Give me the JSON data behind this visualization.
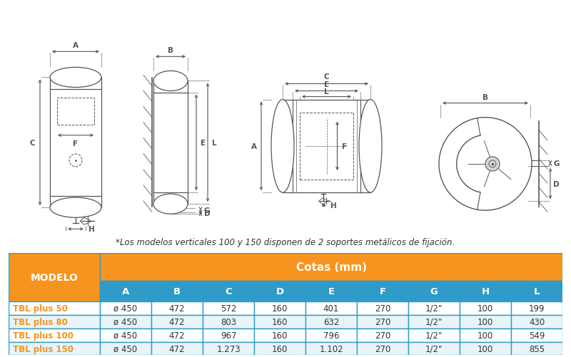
{
  "note_text": "*Los modelos verticales 100 y 150 disponen de 2 soportes metálicos de fijación.",
  "table_header_modelo": "MODELO",
  "table_header_cotas": "Cotas (mm)",
  "table_col_headers": [
    "A",
    "B",
    "C",
    "D",
    "E",
    "F",
    "G",
    "H",
    "L"
  ],
  "table_rows": [
    [
      "TBL plus 50",
      "ø 450",
      "472",
      "572",
      "160",
      "401",
      "270",
      "1/2\"",
      "100",
      "199"
    ],
    [
      "TBL plus 80",
      "ø 450",
      "472",
      "803",
      "160",
      "632",
      "270",
      "1/2\"",
      "100",
      "430"
    ],
    [
      "TBL plus 100",
      "ø 450",
      "472",
      "967",
      "160",
      "796",
      "270",
      "1/2\"",
      "100",
      "549"
    ],
    [
      "TBL plus 150",
      "ø 450",
      "472",
      "1.273",
      "160",
      "1.102",
      "270",
      "1/2\"",
      "100",
      "855"
    ]
  ],
  "orange_color": "#F7941D",
  "col_header_bg": "#2E9BC8",
  "text_white": "#FFFFFF",
  "text_dark": "#333333",
  "text_orange": "#F7941D",
  "diagram_color": "#555555",
  "bg_color": "#FFFFFF",
  "border_color": "#2E9BC8",
  "row_bgs": [
    "#FFFFFF",
    "#E8F4FA",
    "#FFFFFF",
    "#E8F4FA"
  ]
}
